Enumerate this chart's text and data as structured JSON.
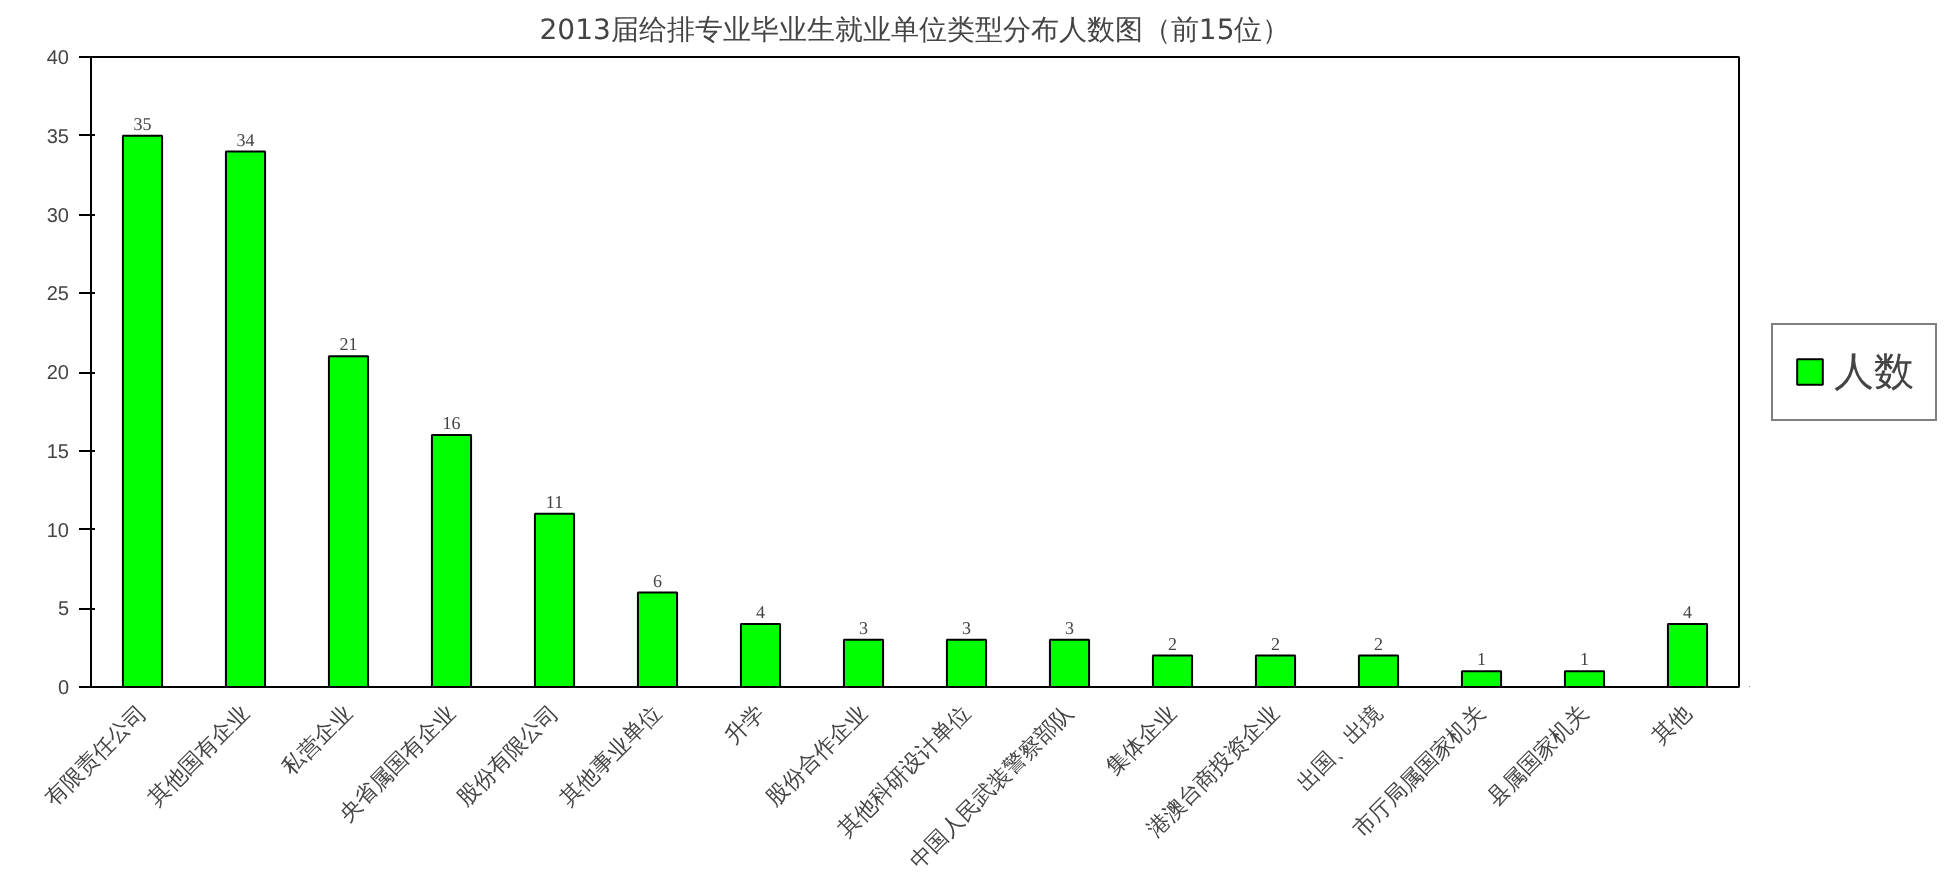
{
  "chart_data": {
    "type": "bar",
    "title": "2013届给排专业毕业生就业单位类型分布人数图（前15位）",
    "categories": [
      "有限责任公司",
      "其他国有企业",
      "私营企业",
      "央省属国有企业",
      "股份有限公司",
      "其他事业单位",
      "升学",
      "股份合作企业",
      "其他科研设计单位",
      "中国人民武装警察部队",
      "集体企业",
      "港澳台商投资企业",
      "出国、出境",
      "市厅局属国家机关",
      "县属国家机关",
      "其他"
    ],
    "series": [
      {
        "name": "人数",
        "color": "#00ff00",
        "values": [
          35,
          34,
          21,
          16,
          11,
          6,
          4,
          3,
          3,
          3,
          2,
          2,
          2,
          1,
          1,
          4
        ]
      }
    ],
    "ylim": [
      0,
      40
    ],
    "yticks": [
      0,
      5,
      10,
      15,
      20,
      25,
      30,
      35,
      40
    ],
    "grid": false,
    "legend": "right",
    "data_labels": true
  }
}
